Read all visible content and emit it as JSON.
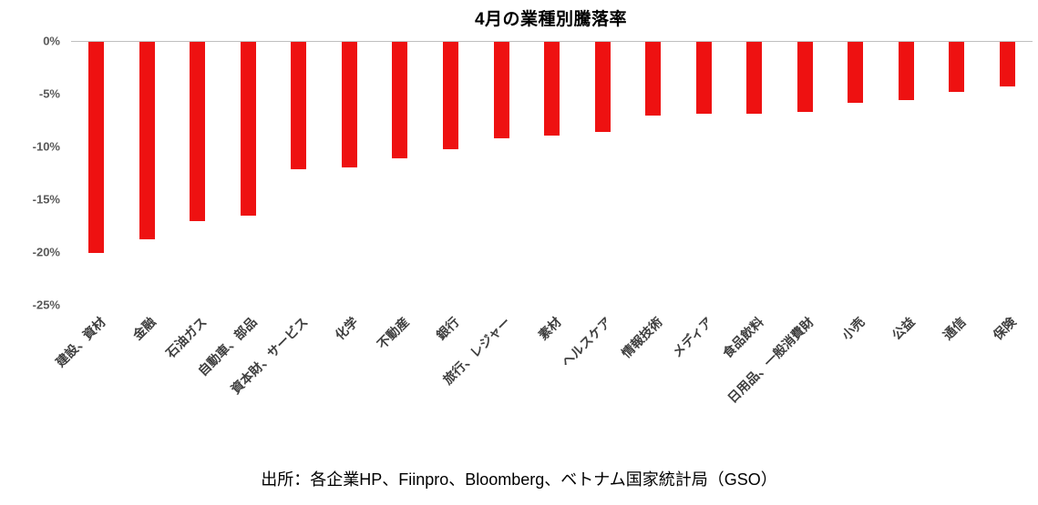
{
  "title": "4月の業種別騰落率",
  "footer": "出所：各企業HP、Fiinpro、Bloomberg、ベトナム国家統計局（GSO）",
  "chart_data": {
    "type": "bar",
    "title": "4月の業種別騰落率",
    "orientation": "vertical",
    "categories": [
      "建設、資材",
      "金融",
      "石油ガス",
      "自動車、部品",
      "資本財、サービス",
      "化学",
      "不動産",
      "銀行",
      "旅行、レジャー",
      "素材",
      "ヘルスケア",
      "情報技術",
      "メディア",
      "食品飲料",
      "日用品、一般消費財",
      "小売",
      "公益",
      "通信",
      "保険"
    ],
    "values": [
      -20.0,
      -18.7,
      -17.0,
      -16.5,
      -12.1,
      -11.9,
      -11.0,
      -10.2,
      -9.1,
      -8.9,
      -8.5,
      -7.0,
      -6.8,
      -6.8,
      -6.6,
      -5.8,
      -5.5,
      -4.7,
      -4.2
    ],
    "unit": "%",
    "xlabel": "",
    "ylabel": "",
    "ylim": [
      -25,
      0
    ],
    "yticks": [
      "0%",
      "-5%",
      "-10%",
      "-15%",
      "-20%",
      "-25%"
    ],
    "ytick_values": [
      0,
      -5,
      -10,
      -15,
      -20,
      -25
    ],
    "bar_color": "#ee1111",
    "grid": false,
    "legend": false,
    "source_note": "出所：各企業HP、Fiinpro、Bloomberg、ベトナム国家統計局（GSO）"
  }
}
